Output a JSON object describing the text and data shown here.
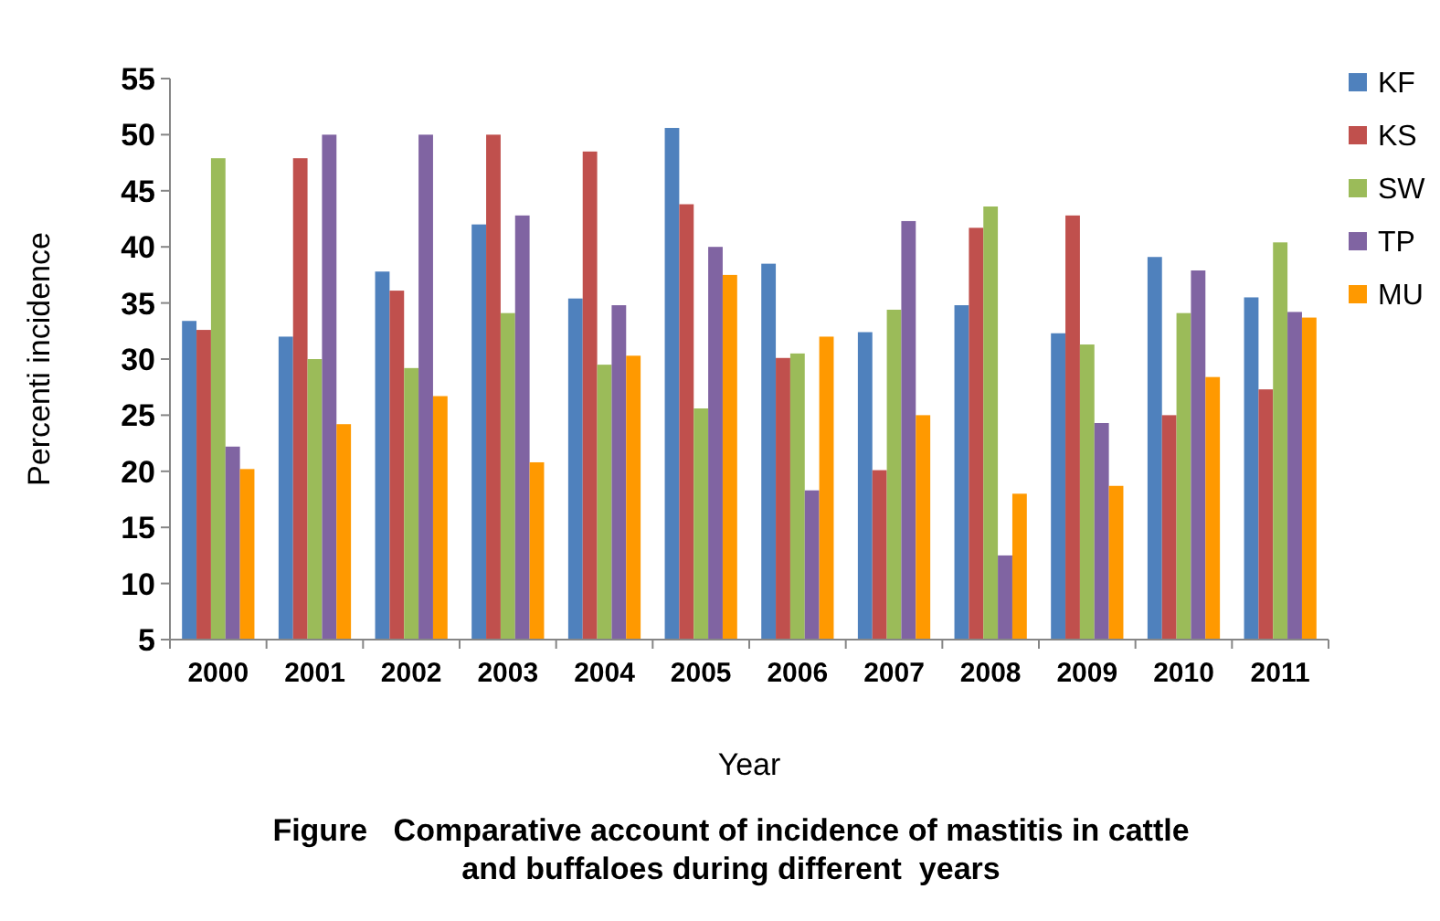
{
  "chart_data": {
    "type": "bar",
    "title": "Figure   Comparative account of incidence of mastitis in cattle\nand buffaloes during different  years",
    "xlabel": "Year",
    "ylabel": "Percenti incidence",
    "categories": [
      "2000",
      "2001",
      "2002",
      "2003",
      "2004",
      "2005",
      "2006",
      "2007",
      "2008",
      "2009",
      "2010",
      "2011"
    ],
    "series": [
      {
        "name": "KF",
        "color": "#4f81bd",
        "values": [
          33.4,
          32,
          37.8,
          42,
          35.4,
          50.6,
          38.5,
          32.4,
          34.8,
          32.3,
          39.1,
          35.5
        ]
      },
      {
        "name": "KS",
        "color": "#c0504d",
        "values": [
          32.6,
          47.9,
          36.1,
          50,
          48.5,
          43.8,
          30.1,
          20.1,
          41.7,
          42.8,
          25,
          27.3
        ]
      },
      {
        "name": "SW",
        "color": "#9bbb59",
        "values": [
          47.9,
          30,
          29.2,
          34.1,
          29.5,
          25.6,
          30.5,
          34.4,
          43.6,
          31.3,
          34.1,
          40.4
        ]
      },
      {
        "name": "TP",
        "color": "#8064a2",
        "values": [
          22.2,
          50,
          50,
          42.8,
          34.8,
          40,
          18.3,
          42.3,
          12.5,
          24.3,
          37.9,
          34.2
        ]
      },
      {
        "name": "MU",
        "color": "#ff9900",
        "values": [
          20.2,
          24.2,
          26.7,
          20.8,
          30.3,
          37.5,
          32,
          25,
          18,
          18.7,
          28.4,
          33.7
        ]
      }
    ],
    "ylim": [
      5,
      55
    ],
    "yticks": [
      5,
      10,
      15,
      20,
      25,
      30,
      35,
      40,
      45,
      50,
      55
    ],
    "grid": false,
    "legend": "top right"
  }
}
